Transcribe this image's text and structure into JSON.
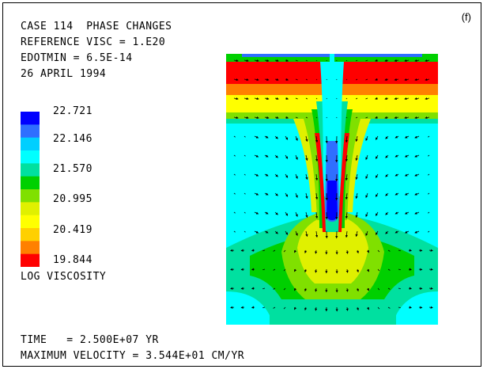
{
  "panel_label": "(f)",
  "header": {
    "line1": "CASE 114  PHASE CHANGES",
    "line2": "REFERENCE VISC = 1.E20",
    "line3": "EDOTMIN = 6.5E-14",
    "line4": "26 APRIL 1994"
  },
  "colorbar": {
    "title": "LOG VISCOSITY",
    "ticks": [
      "22.721",
      "22.146",
      "21.570",
      "20.995",
      "20.419",
      "19.844"
    ],
    "colors": [
      "#0000ff",
      "#2f6fff",
      "#00cfff",
      "#00ffff",
      "#00e0a0",
      "#00d000",
      "#80e000",
      "#e0f000",
      "#ffff00",
      "#ffd000",
      "#ff8000",
      "#ff0000"
    ]
  },
  "footer": {
    "time": "TIME   = 2.500E+07 YR",
    "max_velocity": "MAXIMUM VELOCITY = 3.544E+01 CM/YR"
  }
}
